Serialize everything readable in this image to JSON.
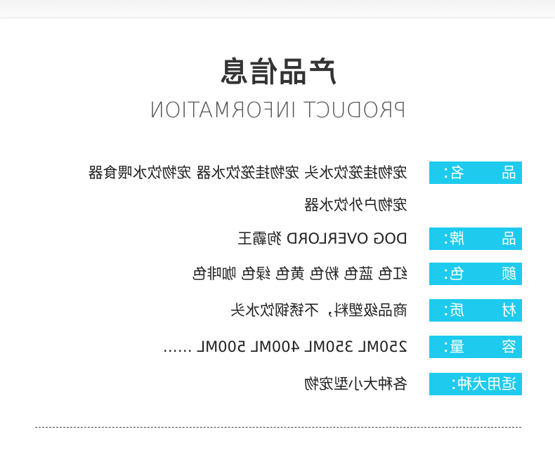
{
  "title": {
    "chinese": "产品信息",
    "english": "PRODUCT INFORMATION"
  },
  "rows": [
    {
      "label_a": "品",
      "label_b": "名：",
      "value": "宠物挂笼饮水头  宠物挂笼饮水器  宠物饮水喂食器",
      "value2": "宠物户外饮水器"
    },
    {
      "label_a": "品",
      "label_b": "牌：",
      "value": "DOG OVERLORD 狗霸王"
    },
    {
      "label_a": "颜",
      "label_b": "色：",
      "value": "红色  蓝色  粉色  黄色  绿色  咖啡色"
    },
    {
      "label_a": "材",
      "label_b": "质：",
      "value": "商品级塑料，不锈钢饮水头"
    },
    {
      "label_a": "容",
      "label_b": "量：",
      "value": "250ML  350ML  400ML  500ML  ……"
    },
    {
      "label_a": "适用犬种：",
      "label_b": "",
      "value": "各种大小型宠物"
    }
  ],
  "colors": {
    "label_bg": "#1ecbee",
    "label_text": "#ffffff",
    "value_text": "#222222"
  }
}
